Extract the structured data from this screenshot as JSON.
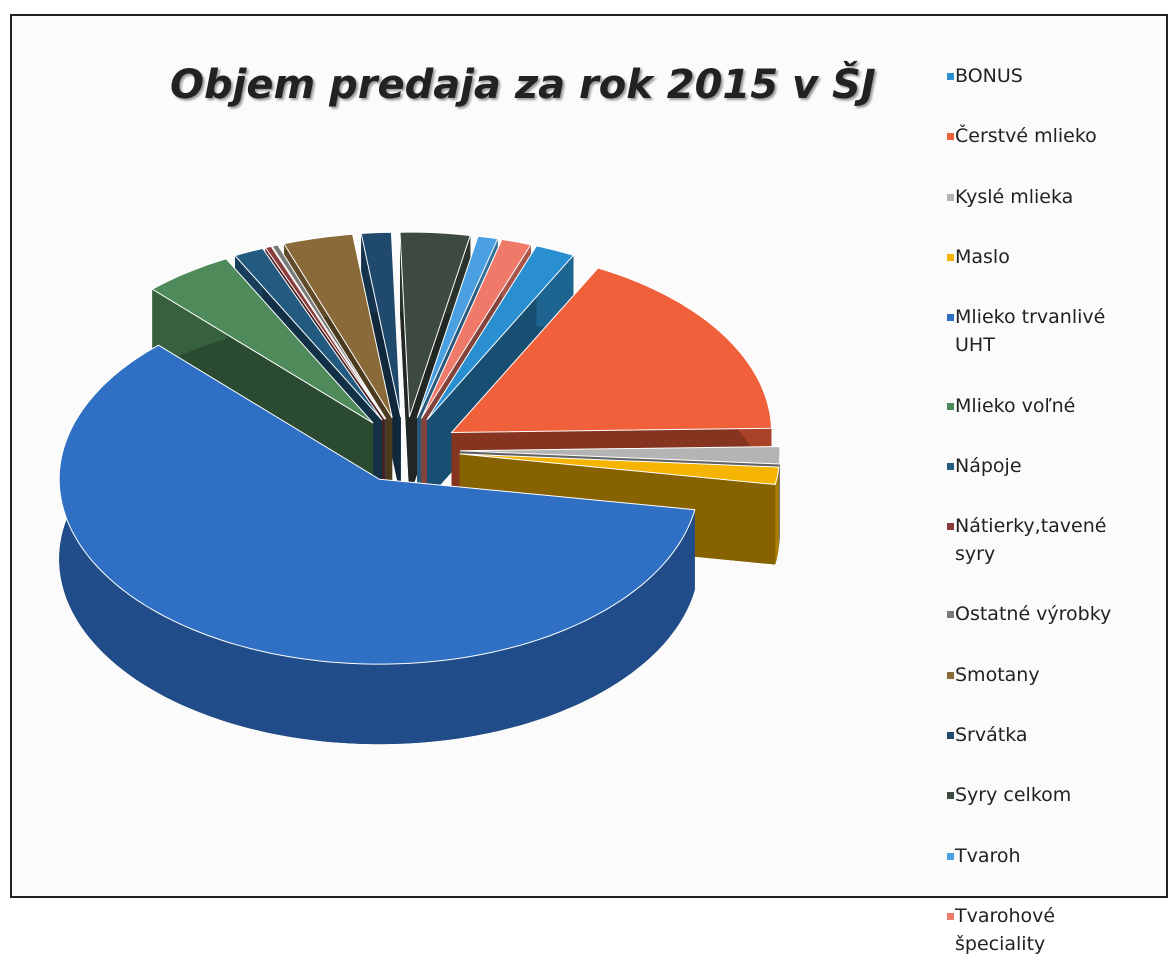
{
  "chart_data": {
    "type": "pie",
    "title": "Objem predaja za rok 2015 v ŠJ",
    "categories": [
      "BONUS",
      "Čerstvé mlieko",
      "Kyslé mlieka",
      "Maslo",
      "Mlieko trvanlivé UHT",
      "Mlieko voľné",
      "Nápoje",
      "Nátierky,tavené syry",
      "Ostatné výrobky",
      "Smotany",
      "Srvátka",
      "Syry celkom",
      "Tvaroh",
      "Tvarohové špeciality"
    ],
    "values": [
      2,
      17,
      1.5,
      1.5,
      60,
      4.5,
      1.5,
      0.3,
      0.3,
      3.5,
      1.5,
      3.5,
      1,
      1.5
    ],
    "colors": [
      "#2a8fd0",
      "#f0603a",
      "#b4b4b4",
      "#f5b400",
      "#2f6fc4",
      "#4e8a5a",
      "#235a80",
      "#8b3a3a",
      "#7a7a7a",
      "#8b6a3a",
      "#1f4a6e",
      "#3d4a40",
      "#4aa0e0",
      "#f07a6a"
    ],
    "legend": "right"
  }
}
